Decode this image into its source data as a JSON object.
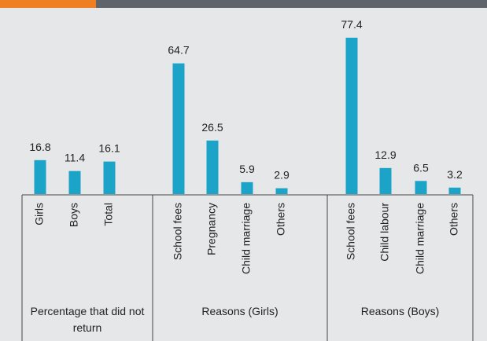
{
  "chart_data": {
    "type": "bar",
    "color": "#1ba3c8",
    "groups": [
      {
        "label": "Percentage that did not return",
        "categories": [
          "Girls",
          "Boys",
          "Total"
        ],
        "values": [
          16.8,
          11.4,
          16.1
        ]
      },
      {
        "label": "Reasons (Girls)",
        "categories": [
          "School fees",
          "Pregnancy",
          "Child marriage",
          "Others"
        ],
        "values": [
          64.7,
          26.5,
          5.9,
          2.9
        ]
      },
      {
        "label": "Reasons (Boys)",
        "categories": [
          "School fees",
          "Child labour",
          "Child marriage",
          "Others"
        ],
        "values": [
          77.4,
          12.9,
          6.5,
          3.2
        ]
      }
    ]
  }
}
